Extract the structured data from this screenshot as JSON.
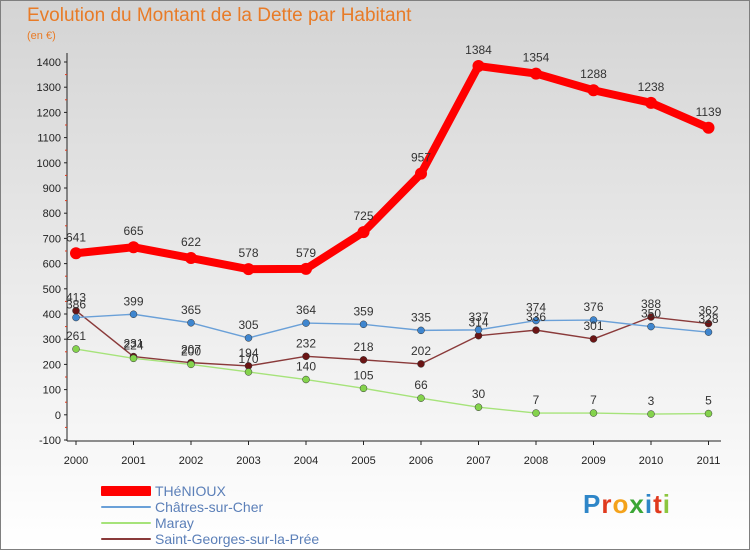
{
  "chart_data": {
    "type": "line",
    "title": "Evolution du Montant de la Dette par Habitant",
    "subtitle": "(en €)",
    "x": [
      "2000",
      "2001",
      "2002",
      "2003",
      "2004",
      "2005",
      "2006",
      "2007",
      "2008",
      "2009",
      "2010",
      "2011"
    ],
    "ylim": [
      -100,
      1400
    ],
    "yticks": [
      -100,
      0,
      100,
      200,
      300,
      400,
      500,
      600,
      700,
      800,
      900,
      1000,
      1100,
      1200,
      1300,
      1400
    ],
    "grid": false,
    "legend_position": "bottom-left",
    "series": [
      {
        "name": "THéNIOUX",
        "color": "#ff0000",
        "values": [
          641,
          665,
          622,
          578,
          579,
          725,
          957,
          1384,
          1354,
          1288,
          1238,
          1139
        ]
      },
      {
        "name": "Châtres-sur-Cher",
        "color": "#4f8fd0",
        "values": [
          386,
          399,
          365,
          305,
          364,
          359,
          335,
          337,
          374,
          376,
          350,
          328
        ]
      },
      {
        "name": "Maray",
        "color": "#90de56",
        "values": [
          261,
          224,
          200,
          170,
          140,
          105,
          66,
          30,
          7,
          7,
          3,
          5
        ]
      },
      {
        "name": "Saint-Georges-sur-la-Prée",
        "color": "#7a1e1e",
        "values": [
          413,
          231,
          207,
          194,
          232,
          218,
          202,
          314,
          336,
          301,
          388,
          362
        ]
      }
    ]
  },
  "logo": {
    "letters": [
      "P",
      "r",
      "o",
      "x",
      "i",
      "t",
      "i"
    ],
    "colors": [
      "#2e86c8",
      "#e03a1e",
      "#f4a21b",
      "#3aa635",
      "#2e86c8",
      "#e03a1e",
      "#8cc63f"
    ]
  }
}
